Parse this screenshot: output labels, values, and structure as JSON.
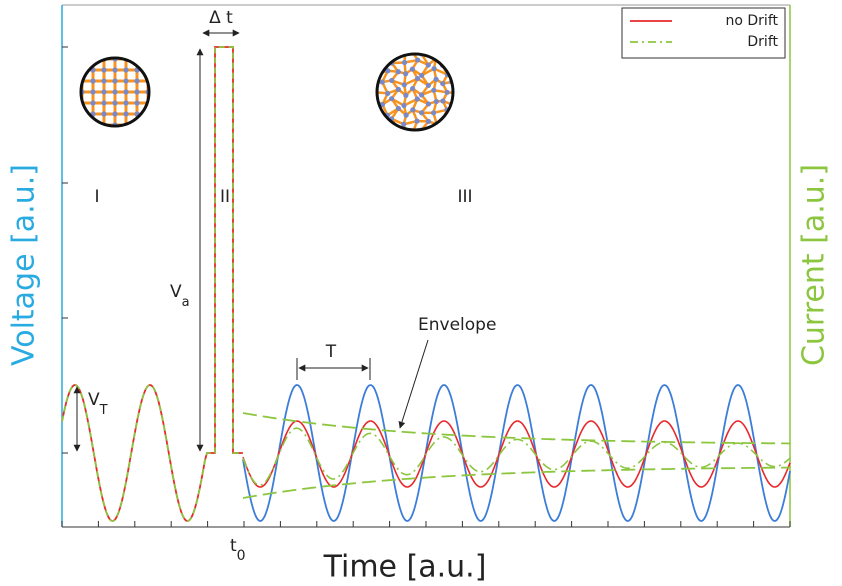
{
  "axes": {
    "x_label": "Time [a.u.]",
    "y_label": "Voltage [a.u.]",
    "y2_label": "Current [a.u.]"
  },
  "legend": [
    {
      "label": "no Drift",
      "color": "#e8282b"
    },
    {
      "label": "Drift",
      "color": "#8cc63f"
    }
  ],
  "annotations": {
    "region_1": "I",
    "region_2": "II",
    "region_3": "III",
    "delta_t": "Δ t",
    "v_a": {
      "base": "V",
      "sub": "a"
    },
    "v_t": {
      "base": "V",
      "sub": "T"
    },
    "period": "T",
    "envelope": "Envelope",
    "t0": {
      "base": "t",
      "sub": "0"
    }
  }
}
